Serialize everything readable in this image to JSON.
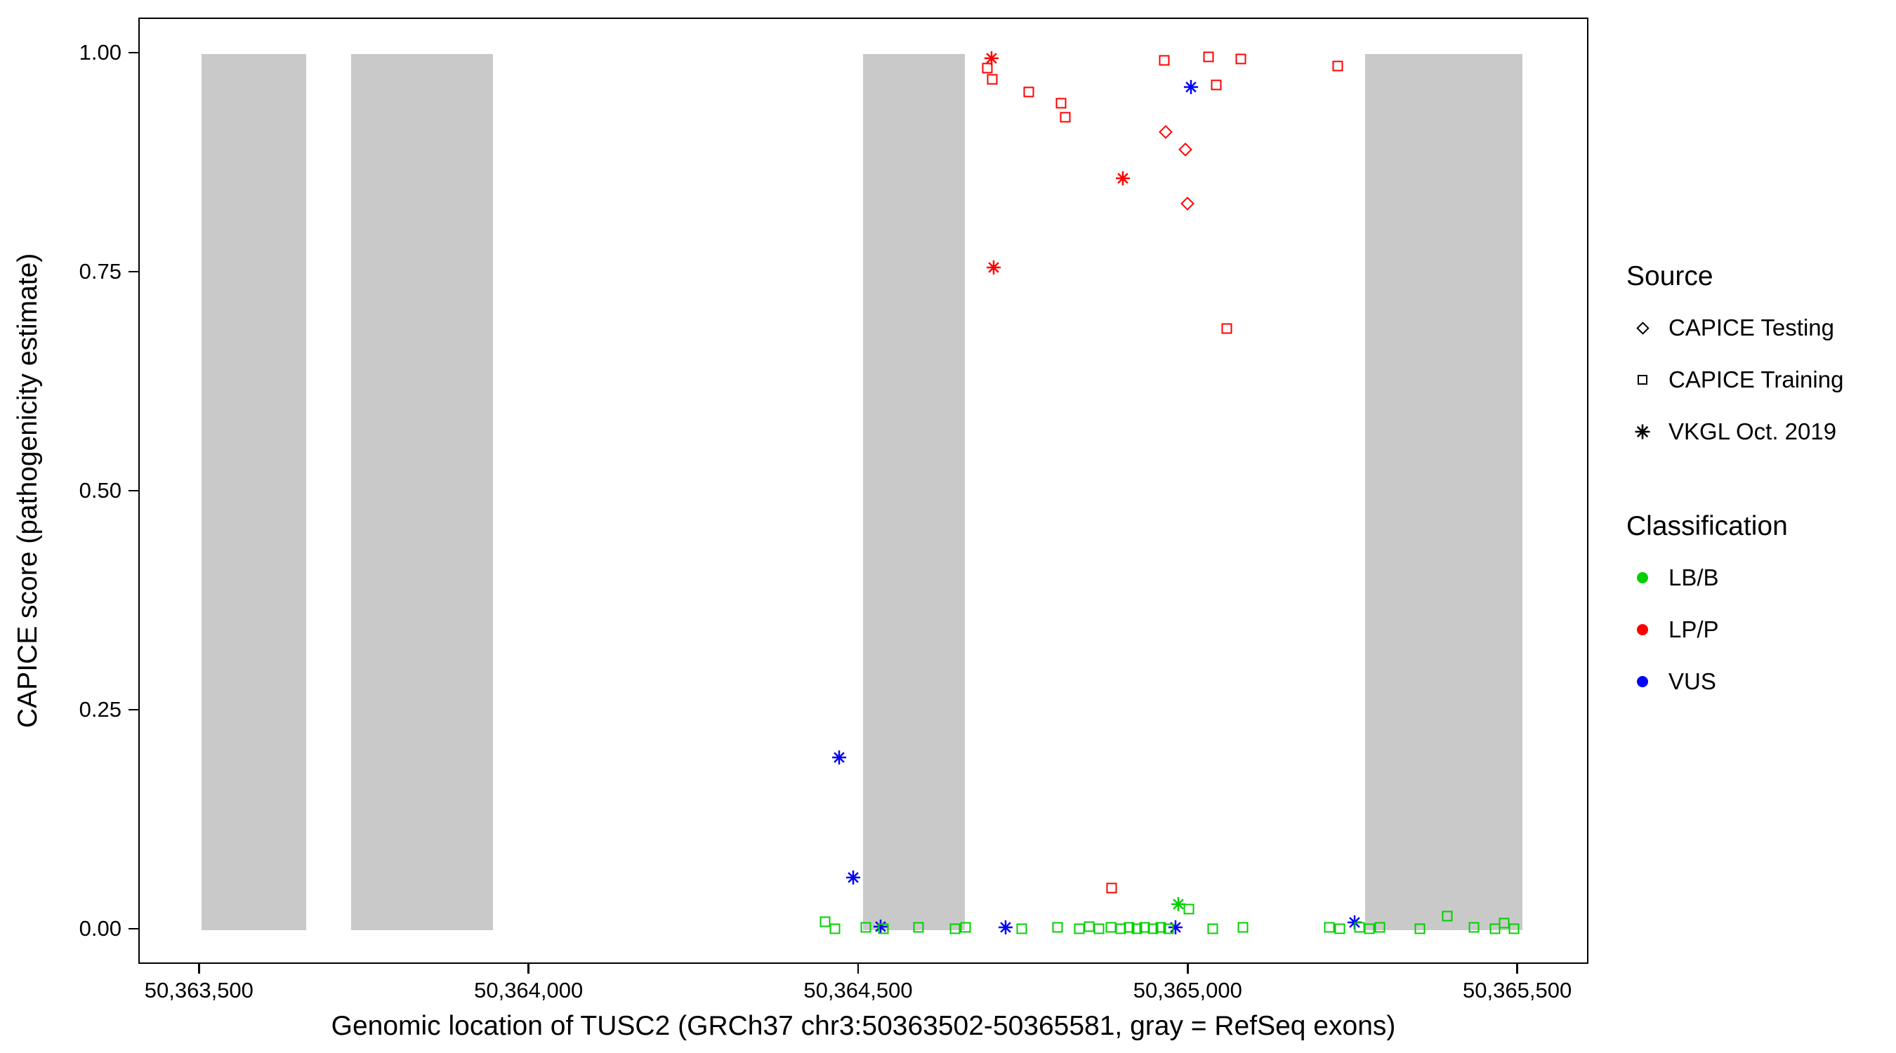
{
  "chart_data": {
    "type": "scatter",
    "title": "",
    "xlabel": "Genomic location of TUSC2 (GRCh37 chr3:50363502-50365581, gray = RefSeq exons)",
    "ylabel": "CAPICE score (pathogenicity estimate)",
    "xlim": [
      50363408,
      50365608
    ],
    "ylim": [
      -0.04,
      1.04
    ],
    "grid": false,
    "x_ticks": [
      {
        "value": 50363500,
        "label": "50,363,500"
      },
      {
        "value": 50364000,
        "label": "50,364,000"
      },
      {
        "value": 50364500,
        "label": "50,364,500"
      },
      {
        "value": 50365000,
        "label": "50,365,000"
      },
      {
        "value": 50365500,
        "label": "50,365,500"
      }
    ],
    "y_ticks": [
      {
        "value": 0.0,
        "label": "0.00"
      },
      {
        "value": 0.25,
        "label": "0.25"
      },
      {
        "value": 0.5,
        "label": "0.50"
      },
      {
        "value": 0.75,
        "label": "0.75"
      },
      {
        "value": 1.0,
        "label": "1.00"
      }
    ],
    "exon_color": "#c9c9c9",
    "exons": [
      {
        "start": 50363502,
        "end": 50363660
      },
      {
        "start": 50363729,
        "end": 50363944
      },
      {
        "start": 50364505,
        "end": 50364660
      },
      {
        "start": 50365267,
        "end": 50365506
      }
    ],
    "classification_colors": {
      "LB/B": "#00d000",
      "LP/P": "#ff0000",
      "VUS": "#0000ff"
    },
    "shape_sources": {
      "diamond": "CAPICE Testing",
      "square": "CAPICE Training",
      "asterisk": "VKGL Oct. 2019"
    },
    "points": [
      {
        "pos": 50364700,
        "score": 0.995,
        "class": "LP/P",
        "shape": "asterisk"
      },
      {
        "pos": 50364694,
        "score": 0.984,
        "class": "LP/P",
        "shape": "square"
      },
      {
        "pos": 50364701,
        "score": 0.971,
        "class": "LP/P",
        "shape": "square"
      },
      {
        "pos": 50364757,
        "score": 0.957,
        "class": "LP/P",
        "shape": "square"
      },
      {
        "pos": 50364806,
        "score": 0.944,
        "class": "LP/P",
        "shape": "square"
      },
      {
        "pos": 50364812,
        "score": 0.928,
        "class": "LP/P",
        "shape": "square"
      },
      {
        "pos": 50364962,
        "score": 0.993,
        "class": "LP/P",
        "shape": "square"
      },
      {
        "pos": 50365030,
        "score": 0.997,
        "class": "LP/P",
        "shape": "square"
      },
      {
        "pos": 50365078,
        "score": 0.994,
        "class": "LP/P",
        "shape": "square"
      },
      {
        "pos": 50365041,
        "score": 0.965,
        "class": "LP/P",
        "shape": "square"
      },
      {
        "pos": 50364964,
        "score": 0.911,
        "class": "LP/P",
        "shape": "diamond"
      },
      {
        "pos": 50364994,
        "score": 0.891,
        "class": "LP/P",
        "shape": "diamond"
      },
      {
        "pos": 50364899,
        "score": 0.858,
        "class": "LP/P",
        "shape": "asterisk"
      },
      {
        "pos": 50364998,
        "score": 0.829,
        "class": "LP/P",
        "shape": "diamond"
      },
      {
        "pos": 50364704,
        "score": 0.756,
        "class": "LP/P",
        "shape": "asterisk"
      },
      {
        "pos": 50365057,
        "score": 0.687,
        "class": "LP/P",
        "shape": "square"
      },
      {
        "pos": 50365226,
        "score": 0.986,
        "class": "LP/P",
        "shape": "square"
      },
      {
        "pos": 50364882,
        "score": 0.048,
        "class": "LP/P",
        "shape": "square"
      },
      {
        "pos": 50365003,
        "score": 0.962,
        "class": "VUS",
        "shape": "asterisk"
      },
      {
        "pos": 50364469,
        "score": 0.197,
        "class": "VUS",
        "shape": "asterisk"
      },
      {
        "pos": 50364490,
        "score": 0.06,
        "class": "VUS",
        "shape": "asterisk"
      },
      {
        "pos": 50364532,
        "score": 0.004,
        "class": "VUS",
        "shape": "asterisk"
      },
      {
        "pos": 50364722,
        "score": 0.003,
        "class": "VUS",
        "shape": "asterisk"
      },
      {
        "pos": 50364979,
        "score": 0.003,
        "class": "VUS",
        "shape": "asterisk"
      },
      {
        "pos": 50365251,
        "score": 0.009,
        "class": "VUS",
        "shape": "asterisk"
      },
      {
        "pos": 50364984,
        "score": 0.03,
        "class": "LB/B",
        "shape": "asterisk"
      },
      {
        "pos": 50365000,
        "score": 0.024,
        "class": "LB/B",
        "shape": "square"
      },
      {
        "pos": 50364448,
        "score": 0.01,
        "class": "LB/B",
        "shape": "square"
      },
      {
        "pos": 50364463,
        "score": 0.002,
        "class": "LB/B",
        "shape": "square"
      },
      {
        "pos": 50364510,
        "score": 0.003,
        "class": "LB/B",
        "shape": "square"
      },
      {
        "pos": 50364536,
        "score": 0.002,
        "class": "LB/B",
        "shape": "square"
      },
      {
        "pos": 50364590,
        "score": 0.003,
        "class": "LB/B",
        "shape": "square"
      },
      {
        "pos": 50364645,
        "score": 0.002,
        "class": "LB/B",
        "shape": "square"
      },
      {
        "pos": 50364661,
        "score": 0.003,
        "class": "LB/B",
        "shape": "square"
      },
      {
        "pos": 50364746,
        "score": 0.002,
        "class": "LB/B",
        "shape": "square"
      },
      {
        "pos": 50364800,
        "score": 0.003,
        "class": "LB/B",
        "shape": "square"
      },
      {
        "pos": 50364833,
        "score": 0.002,
        "class": "LB/B",
        "shape": "square"
      },
      {
        "pos": 50364848,
        "score": 0.004,
        "class": "LB/B",
        "shape": "square"
      },
      {
        "pos": 50364863,
        "score": 0.002,
        "class": "LB/B",
        "shape": "square"
      },
      {
        "pos": 50364881,
        "score": 0.003,
        "class": "LB/B",
        "shape": "square"
      },
      {
        "pos": 50364896,
        "score": 0.002,
        "class": "LB/B",
        "shape": "square"
      },
      {
        "pos": 50364909,
        "score": 0.003,
        "class": "LB/B",
        "shape": "square"
      },
      {
        "pos": 50364921,
        "score": 0.002,
        "class": "LB/B",
        "shape": "square"
      },
      {
        "pos": 50364933,
        "score": 0.003,
        "class": "LB/B",
        "shape": "square"
      },
      {
        "pos": 50364945,
        "score": 0.002,
        "class": "LB/B",
        "shape": "square"
      },
      {
        "pos": 50364957,
        "score": 0.003,
        "class": "LB/B",
        "shape": "square"
      },
      {
        "pos": 50364969,
        "score": 0.002,
        "class": "LB/B",
        "shape": "square"
      },
      {
        "pos": 50365036,
        "score": 0.002,
        "class": "LB/B",
        "shape": "square"
      },
      {
        "pos": 50365082,
        "score": 0.003,
        "class": "LB/B",
        "shape": "square"
      },
      {
        "pos": 50365213,
        "score": 0.003,
        "class": "LB/B",
        "shape": "square"
      },
      {
        "pos": 50365229,
        "score": 0.002,
        "class": "LB/B",
        "shape": "square"
      },
      {
        "pos": 50365259,
        "score": 0.003,
        "class": "LB/B",
        "shape": "square"
      },
      {
        "pos": 50365273,
        "score": 0.002,
        "class": "LB/B",
        "shape": "square"
      },
      {
        "pos": 50365289,
        "score": 0.003,
        "class": "LB/B",
        "shape": "square"
      },
      {
        "pos": 50365350,
        "score": 0.002,
        "class": "LB/B",
        "shape": "square"
      },
      {
        "pos": 50365392,
        "score": 0.016,
        "class": "LB/B",
        "shape": "square"
      },
      {
        "pos": 50365432,
        "score": 0.003,
        "class": "LB/B",
        "shape": "square"
      },
      {
        "pos": 50365464,
        "score": 0.002,
        "class": "LB/B",
        "shape": "square"
      },
      {
        "pos": 50365478,
        "score": 0.008,
        "class": "LB/B",
        "shape": "square"
      },
      {
        "pos": 50365493,
        "score": 0.002,
        "class": "LB/B",
        "shape": "square"
      }
    ]
  },
  "legend": {
    "source": {
      "title": "Source",
      "items": [
        {
          "label": "CAPICE Testing",
          "shape": "diamond"
        },
        {
          "label": "CAPICE Training",
          "shape": "square"
        },
        {
          "label": "VKGL Oct. 2019",
          "shape": "asterisk"
        }
      ]
    },
    "classification": {
      "title": "Classification",
      "items": [
        {
          "label": "LB/B",
          "color": "#00d000"
        },
        {
          "label": "LP/P",
          "color": "#ff0000"
        },
        {
          "label": "VUS",
          "color": "#0000ff"
        }
      ]
    }
  }
}
